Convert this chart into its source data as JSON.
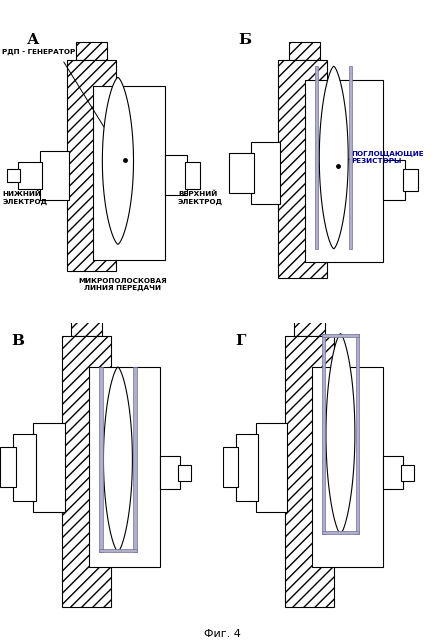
{
  "title": "Фиг. 4",
  "panels": [
    "А",
    "Б",
    "В",
    "Г"
  ],
  "label_rdp": "РДП - ГЕНЕРАТОР",
  "label_lower": "НИЖНИЙ\nЭЛЕКТРОД",
  "label_upper": "ВЕРХНИЙ\nЭЛЕКТРОД",
  "label_micro": "МИКРОПОЛОСКОВАЯ\nЛИНИЯ ПЕРЕДАЧИ",
  "label_resist": "ПОГЛОЩАЮЩИЕ\nРЕЗИСТОРЫ",
  "resistor_color": "#b0afc8",
  "resistor_edge": "#7070a0",
  "bg_color": "#ffffff"
}
